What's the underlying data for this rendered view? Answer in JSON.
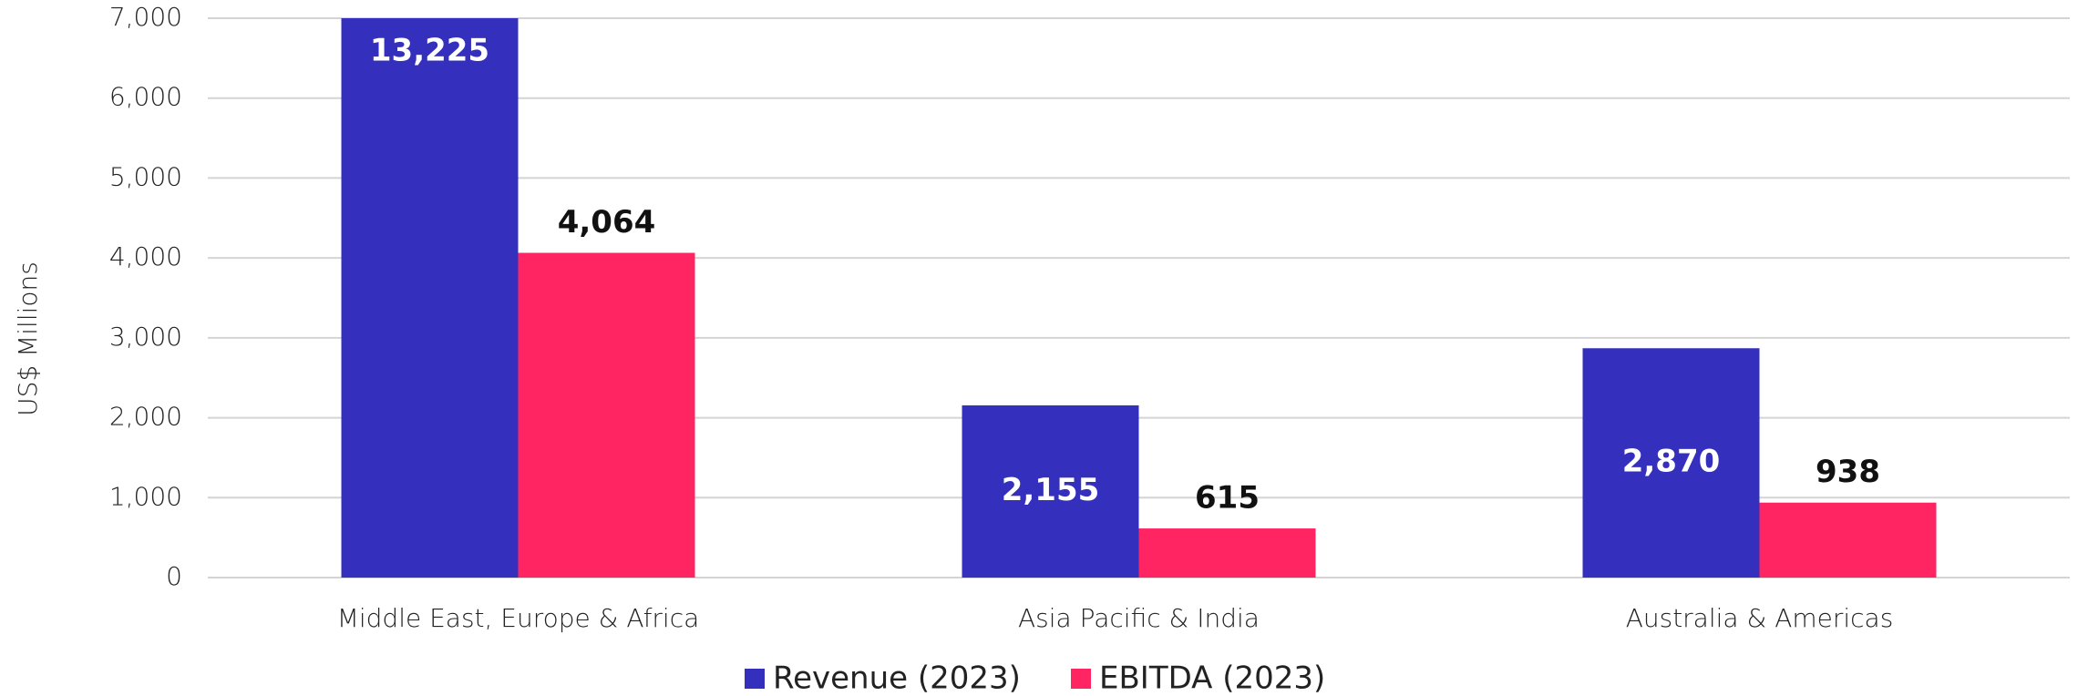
{
  "chart_data": {
    "type": "bar",
    "y_label": "US$ Millions",
    "categories": [
      "Middle East, Europe & Africa",
      "Asia Pacific & India",
      "Australia & Americas"
    ],
    "series": [
      {
        "name": "Revenue (2023)",
        "color": "#3430bd",
        "values": [
          13225,
          2155,
          2870
        ],
        "value_labels": [
          "13,225",
          "2,155",
          "2,870"
        ]
      },
      {
        "name": "EBITDA (2023)",
        "color": "#ff2462",
        "values": [
          4064,
          615,
          938
        ],
        "value_labels": [
          "4,064",
          "615",
          "938"
        ]
      }
    ],
    "ylim": [
      0,
      7000
    ],
    "yticks": [
      0,
      {
        "value": 1000,
        "label": "1,000"
      },
      {
        "value": 2000,
        "label": "2,000"
      },
      {
        "value": 3000,
        "label": "3,000"
      },
      {
        "value": 4000,
        "label": "4,000"
      },
      {
        "value": 5000,
        "label": "5,000"
      },
      {
        "value": 6000,
        "label": "6,000"
      },
      {
        "value": 7000,
        "label": "7,000"
      }
    ],
    "grid": true,
    "legend": "bottom"
  }
}
